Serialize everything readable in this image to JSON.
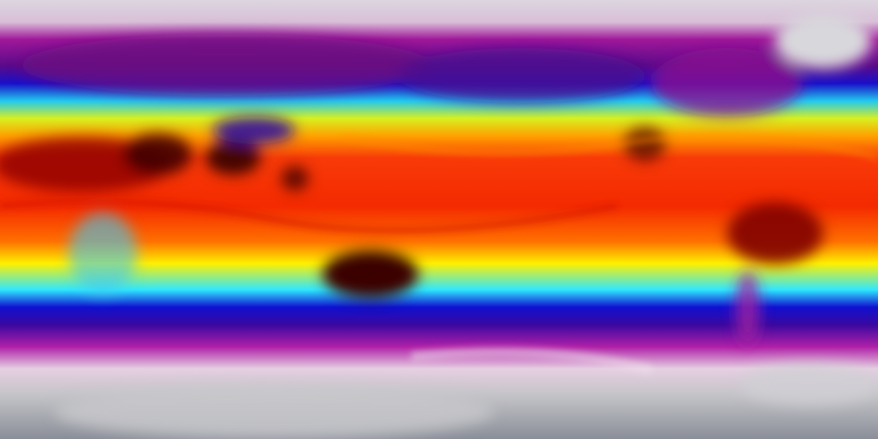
{
  "map": {
    "projection": "equirectangular",
    "variable_type": "global surface temperature field",
    "colormap": [
      {
        "stop": 0.0,
        "color": "#dcd6df"
      },
      {
        "stop": 0.05,
        "color": "#d9bfd8"
      },
      {
        "stop": 0.09,
        "color": "#a0189a"
      },
      {
        "stop": 0.15,
        "color": "#5a0a8a"
      },
      {
        "stop": 0.19,
        "color": "#1a0fc8"
      },
      {
        "stop": 0.23,
        "color": "#22c8f0"
      },
      {
        "stop": 0.27,
        "color": "#d8f020"
      },
      {
        "stop": 0.31,
        "color": "#ffa000"
      },
      {
        "stop": 0.36,
        "color": "#f83a08"
      },
      {
        "stop": 0.47,
        "color": "#f42a00"
      },
      {
        "stop": 0.55,
        "color": "#ff7000"
      },
      {
        "stop": 0.6,
        "color": "#fff000"
      },
      {
        "stop": 0.66,
        "color": "#30e8ff"
      },
      {
        "stop": 0.7,
        "color": "#1010d0"
      },
      {
        "stop": 0.74,
        "color": "#3a08a0"
      },
      {
        "stop": 0.79,
        "color": "#b020a8"
      },
      {
        "stop": 0.84,
        "color": "#e6cfe2"
      },
      {
        "stop": 0.9,
        "color": "#c4c4c8"
      },
      {
        "stop": 1.0,
        "color": "#8a8e98"
      }
    ],
    "hot_color": "#3a0000",
    "ice_color": "#d8d8dc"
  }
}
